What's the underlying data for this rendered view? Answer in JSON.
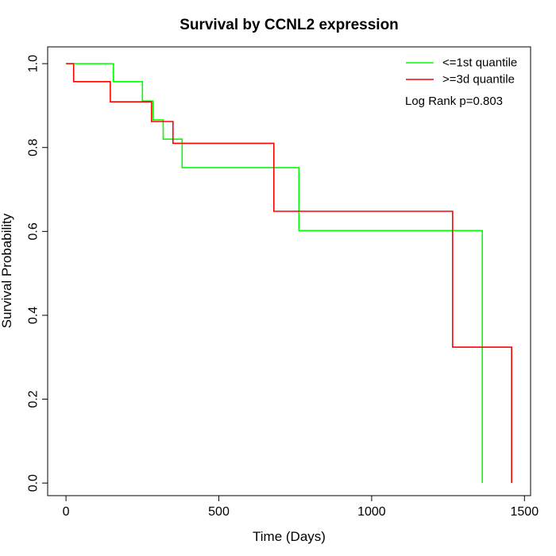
{
  "chart_data": {
    "type": "line",
    "step": true,
    "title": "Survival by CCNL2 expression",
    "xlabel": "Time (Days)",
    "ylabel": "Survival Probability",
    "xlim": [
      -60,
      1520
    ],
    "ylim": [
      -0.03,
      1.04
    ],
    "xticks": [
      0,
      500,
      1000,
      1500
    ],
    "xtick_labels": [
      "0",
      "500",
      "1000",
      "1500"
    ],
    "yticks": [
      0.0,
      0.2,
      0.4,
      0.6,
      0.8,
      1.0
    ],
    "ytick_labels": [
      "0.0",
      "0.2",
      "0.4",
      "0.6",
      "0.8",
      "1.0"
    ],
    "grid": false,
    "legend_position": "top-right",
    "annotation": "Log Rank p=0.803",
    "series": [
      {
        "name": "<=1st quantile",
        "color": "#00ff00",
        "x": [
          0,
          155,
          250,
          285,
          318,
          380,
          762,
          1362,
          1362
        ],
        "y": [
          1.0,
          0.957,
          0.911,
          0.866,
          0.82,
          0.752,
          0.602,
          0.602,
          0.0
        ]
      },
      {
        "name": ">=3d quantile",
        "color": "#ff0000",
        "x": [
          0,
          25,
          145,
          280,
          350,
          680,
          1265,
          1458,
          1458
        ],
        "y": [
          1.0,
          0.957,
          0.909,
          0.862,
          0.81,
          0.648,
          0.324,
          0.324,
          0.0
        ]
      }
    ]
  }
}
